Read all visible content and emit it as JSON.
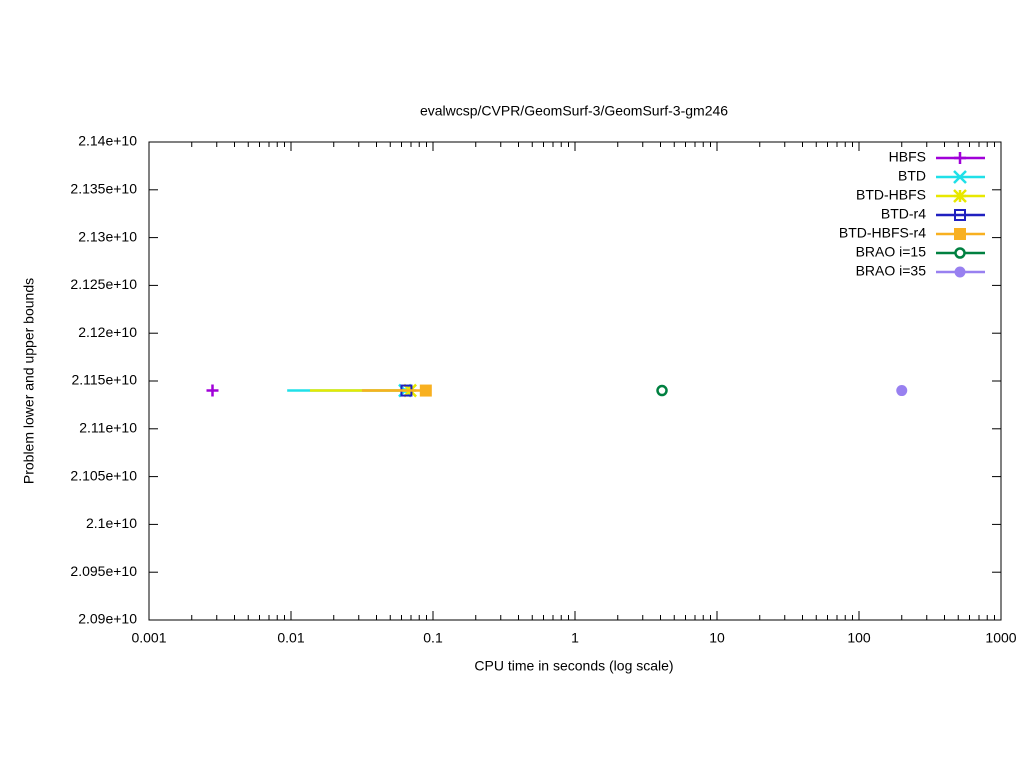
{
  "chart_data": {
    "type": "line",
    "title": "evalwcsp/CVPR/GeomSurf-3/GeomSurf-3-gm246",
    "x_label": "CPU time in seconds (log scale)",
    "y_label": "Problem lower and upper bounds",
    "x_log": true,
    "xlim": [
      0.001,
      1000
    ],
    "xticks": [
      0.001,
      0.01,
      0.1,
      1,
      10,
      100,
      1000
    ],
    "ylim": [
      20900000000,
      21400000000
    ],
    "yticks": [
      {
        "value": 20900000000,
        "label": "2.09e+10"
      },
      {
        "value": 20950000000,
        "label": "2.095e+10"
      },
      {
        "value": 21000000000,
        "label": "2.1e+10"
      },
      {
        "value": 21050000000,
        "label": "2.105e+10"
      },
      {
        "value": 21100000000,
        "label": "2.11e+10"
      },
      {
        "value": 21150000000,
        "label": "2.115e+10"
      },
      {
        "value": 21200000000,
        "label": "2.12e+10"
      },
      {
        "value": 21250000000,
        "label": "2.125e+10"
      },
      {
        "value": 21300000000,
        "label": "2.13e+10"
      },
      {
        "value": 21350000000,
        "label": "2.135e+10"
      },
      {
        "value": 21400000000,
        "label": "2.14e+10"
      }
    ],
    "legend": "top-right",
    "series": [
      {
        "name": "HBFS",
        "color": "#a000d8",
        "marker": "plus",
        "x": [
          0.0028
        ],
        "values": [
          21140000000
        ]
      },
      {
        "name": "BTD",
        "color": "#20e0e8",
        "marker": "cross",
        "x": [
          0.0094,
          0.0635
        ],
        "values": [
          21140000000,
          21140000000
        ]
      },
      {
        "name": "BTD-HBFS",
        "color": "#e8e800",
        "marker": "star",
        "x": [
          0.0136,
          0.069
        ],
        "values": [
          21140000000,
          21140000000
        ]
      },
      {
        "name": "BTD-r4",
        "color": "#2020c0",
        "marker": "square",
        "x": [
          0.065
        ],
        "values": [
          21140000000
        ]
      },
      {
        "name": "BTD-HBFS-r4",
        "color": "#f8b020",
        "marker": "filled-square",
        "x": [
          0.0316,
          0.089
        ],
        "values": [
          21140000000,
          21140000000
        ]
      },
      {
        "name": "BRAO i=15",
        "color": "#008040",
        "marker": "dot-circle",
        "x": [
          4.1
        ],
        "values": [
          21140000000
        ]
      },
      {
        "name": "BRAO i=35",
        "color": "#9880f0",
        "marker": "filled-circle",
        "x": [
          200
        ],
        "values": [
          21140000000
        ]
      }
    ]
  }
}
